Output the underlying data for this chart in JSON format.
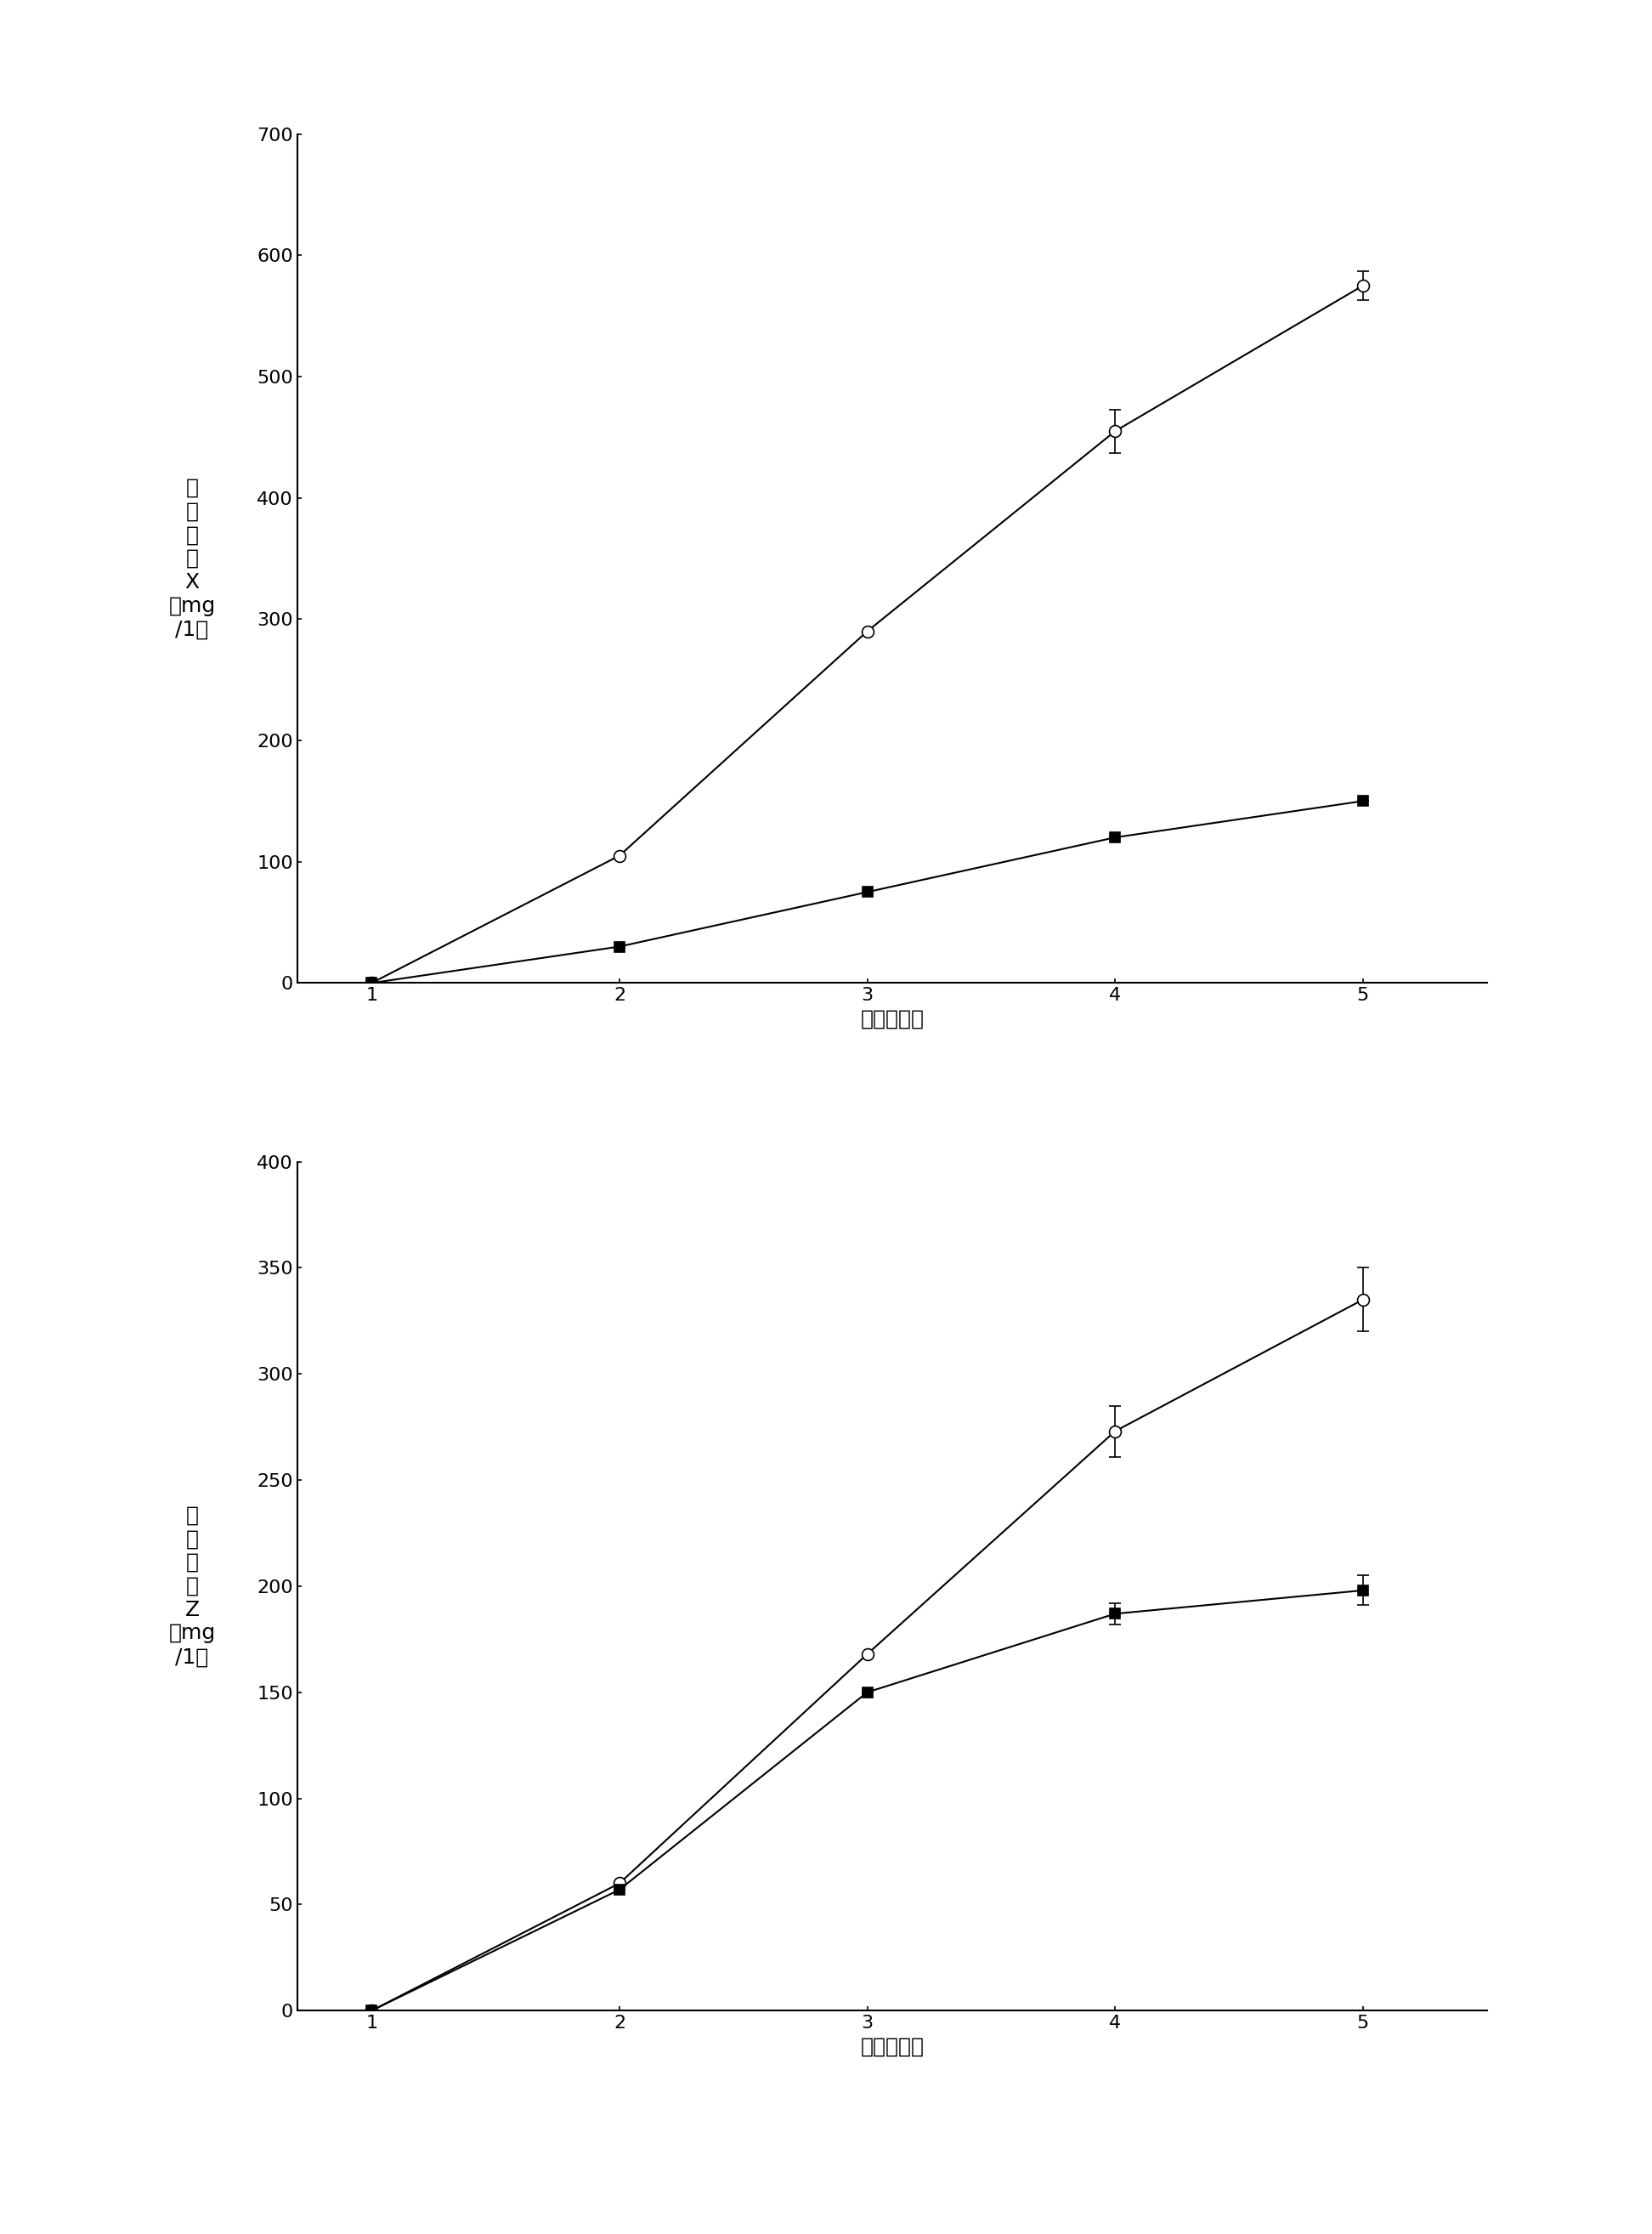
{
  "top_chart": {
    "ylabel_lines": [
      "尼",
      "可",
      "霌",
      "素",
      "X",
      "（mg",
      "/1）"
    ],
    "xlabel": "时间（天）",
    "x": [
      1,
      2,
      3,
      4,
      5
    ],
    "open_circle": [
      0,
      105,
      290,
      455,
      575
    ],
    "open_circle_err": [
      0,
      0,
      0,
      18,
      12
    ],
    "filled_square": [
      0,
      30,
      75,
      120,
      150
    ],
    "filled_square_err": [
      0,
      0,
      0,
      0,
      0
    ],
    "triangle_x": [
      1
    ],
    "triangle_y": [
      0
    ],
    "ylim": [
      0,
      700
    ],
    "yticks": [
      0,
      100,
      200,
      300,
      400,
      500,
      600,
      700
    ],
    "xlim": [
      0.7,
      5.5
    ],
    "xticks": [
      1,
      2,
      3,
      4,
      5
    ]
  },
  "bottom_chart": {
    "ylabel_lines": [
      "尼",
      "可",
      "霌",
      "素",
      "Z",
      "（mg",
      "/1）"
    ],
    "xlabel": "时间（天）",
    "x": [
      1,
      2,
      3,
      4,
      5
    ],
    "open_circle": [
      0,
      60,
      168,
      273,
      335
    ],
    "open_circle_err": [
      0,
      0,
      0,
      12,
      15
    ],
    "filled_square": [
      0,
      57,
      150,
      187,
      198
    ],
    "filled_square_err": [
      0,
      0,
      0,
      5,
      7
    ],
    "triangle_x": [
      1
    ],
    "triangle_y": [
      0
    ],
    "ylim": [
      0,
      400
    ],
    "yticks": [
      0,
      50,
      100,
      150,
      200,
      250,
      300,
      350,
      400
    ],
    "xlim": [
      0.7,
      5.5
    ],
    "xticks": [
      1,
      2,
      3,
      4,
      5
    ]
  },
  "bg_color": "#ffffff",
  "line_color": "#000000",
  "font_size_label": 18,
  "font_size_tick": 16
}
